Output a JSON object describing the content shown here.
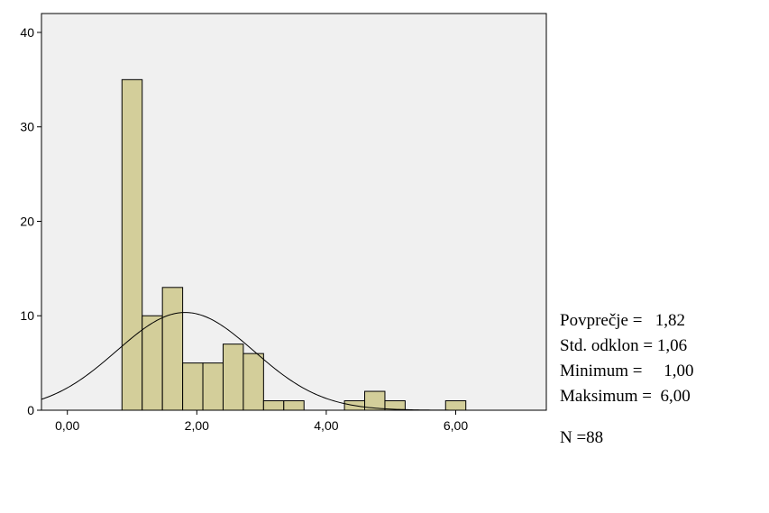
{
  "chart_data": {
    "type": "bar",
    "subtype": "histogram",
    "x_ticks": [
      0,
      2,
      4,
      6
    ],
    "x_tick_labels": [
      "0,00",
      "2,00",
      "4,00",
      "6,00"
    ],
    "y_ticks": [
      0,
      10,
      20,
      30,
      40
    ],
    "y_tick_labels": [
      "0",
      "10",
      "20",
      "30",
      "40"
    ],
    "xlim": [
      -0.4,
      7.4
    ],
    "ylim": [
      0,
      42
    ],
    "bin_width": 0.3125,
    "bins": [
      {
        "start": 0.8438,
        "count": 35
      },
      {
        "start": 1.1563,
        "count": 10
      },
      {
        "start": 1.4688,
        "count": 13
      },
      {
        "start": 1.7813,
        "count": 5
      },
      {
        "start": 2.0938,
        "count": 5
      },
      {
        "start": 2.4063,
        "count": 7
      },
      {
        "start": 2.7188,
        "count": 6
      },
      {
        "start": 3.0313,
        "count": 1
      },
      {
        "start": 3.3438,
        "count": 1
      },
      {
        "start": 3.6563,
        "count": 0
      },
      {
        "start": 3.9688,
        "count": 0
      },
      {
        "start": 4.2813,
        "count": 1
      },
      {
        "start": 4.5938,
        "count": 2
      },
      {
        "start": 4.9063,
        "count": 1
      },
      {
        "start": 5.2188,
        "count": 0
      },
      {
        "start": 5.5313,
        "count": 0
      },
      {
        "start": 5.8438,
        "count": 1
      }
    ],
    "normal_curve": {
      "mean": 1.82,
      "sd": 1.06,
      "n": 88
    },
    "grid": false,
    "colors": {
      "plot_background": "#f0f0f0",
      "bar_fill": "#d3ce9a",
      "bar_stroke": "#000000",
      "curve": "#000000"
    }
  },
  "stats": {
    "mean": "Povprečje =   1,82",
    "std": "Std. odklon = 1,06",
    "min": "Minimum =     1,00",
    "max": "Maksimum =  6,00",
    "n": "N =88"
  }
}
